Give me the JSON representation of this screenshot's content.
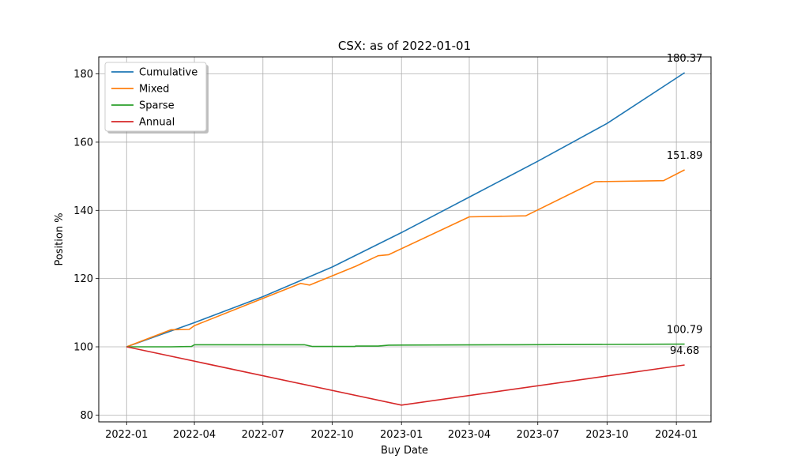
{
  "chart_data": {
    "type": "line",
    "title": "CSX: as of 2022-01-01",
    "xlabel": "Buy Date",
    "ylabel": "Position %",
    "x_ticks": [
      "2022-01-01",
      "2022-04-01",
      "2022-07-01",
      "2022-10-01",
      "2023-01-01",
      "2023-04-01",
      "2023-07-01",
      "2023-10-01",
      "2024-01-01"
    ],
    "x_tick_labels": [
      "2022-01",
      "2022-04",
      "2022-07",
      "2022-10",
      "2023-01",
      "2023-04",
      "2023-07",
      "2023-10",
      "2024-01"
    ],
    "xlim": [
      "2021-11-25",
      "2024-02-16"
    ],
    "y_ticks": [
      80,
      100,
      120,
      140,
      160,
      180
    ],
    "ylim": [
      78.0,
      185.0
    ],
    "grid": true,
    "legend_position": "top-left",
    "series": [
      {
        "name": "Cumulative",
        "color": "#1f77b4",
        "points": [
          [
            "2022-01-01",
            100.0
          ],
          [
            "2022-04-01",
            107.1
          ],
          [
            "2022-07-01",
            114.7
          ],
          [
            "2022-10-01",
            123.4
          ],
          [
            "2023-01-01",
            133.5
          ],
          [
            "2023-04-01",
            143.9
          ],
          [
            "2023-07-01",
            154.4
          ],
          [
            "2023-10-01",
            165.5
          ],
          [
            "2024-01-12",
            180.37
          ]
        ],
        "end_label": "180.37"
      },
      {
        "name": "Mixed",
        "color": "#ff7f0e",
        "points": [
          [
            "2022-01-01",
            100.0
          ],
          [
            "2022-03-01",
            105.0
          ],
          [
            "2022-03-25",
            105.1
          ],
          [
            "2022-04-01",
            106.2
          ],
          [
            "2022-08-20",
            118.6
          ],
          [
            "2022-09-01",
            118.1
          ],
          [
            "2022-11-01",
            123.6
          ],
          [
            "2022-12-01",
            126.7
          ],
          [
            "2022-12-15",
            127.0
          ],
          [
            "2023-04-01",
            138.1
          ],
          [
            "2023-06-15",
            138.4
          ],
          [
            "2023-09-15",
            148.4
          ],
          [
            "2023-12-15",
            148.7
          ],
          [
            "2024-01-12",
            151.89
          ]
        ],
        "end_label": "151.89"
      },
      {
        "name": "Sparse",
        "color": "#2ca02c",
        "points": [
          [
            "2022-01-01",
            100.0
          ],
          [
            "2022-03-01",
            100.0
          ],
          [
            "2022-03-28",
            100.1
          ],
          [
            "2022-04-01",
            100.6
          ],
          [
            "2022-08-25",
            100.6
          ],
          [
            "2022-09-05",
            100.1
          ],
          [
            "2022-10-31",
            100.1
          ],
          [
            "2022-11-01",
            100.2
          ],
          [
            "2022-12-01",
            100.2
          ],
          [
            "2022-12-15",
            100.5
          ],
          [
            "2023-06-01",
            100.6
          ],
          [
            "2024-01-12",
            100.79
          ]
        ],
        "end_label": "100.79"
      },
      {
        "name": "Annual",
        "color": "#d62728",
        "points": [
          [
            "2022-01-01",
            100.0
          ],
          [
            "2023-01-01",
            82.9
          ],
          [
            "2024-01-12",
            94.68
          ]
        ],
        "end_label": "94.68"
      }
    ]
  }
}
